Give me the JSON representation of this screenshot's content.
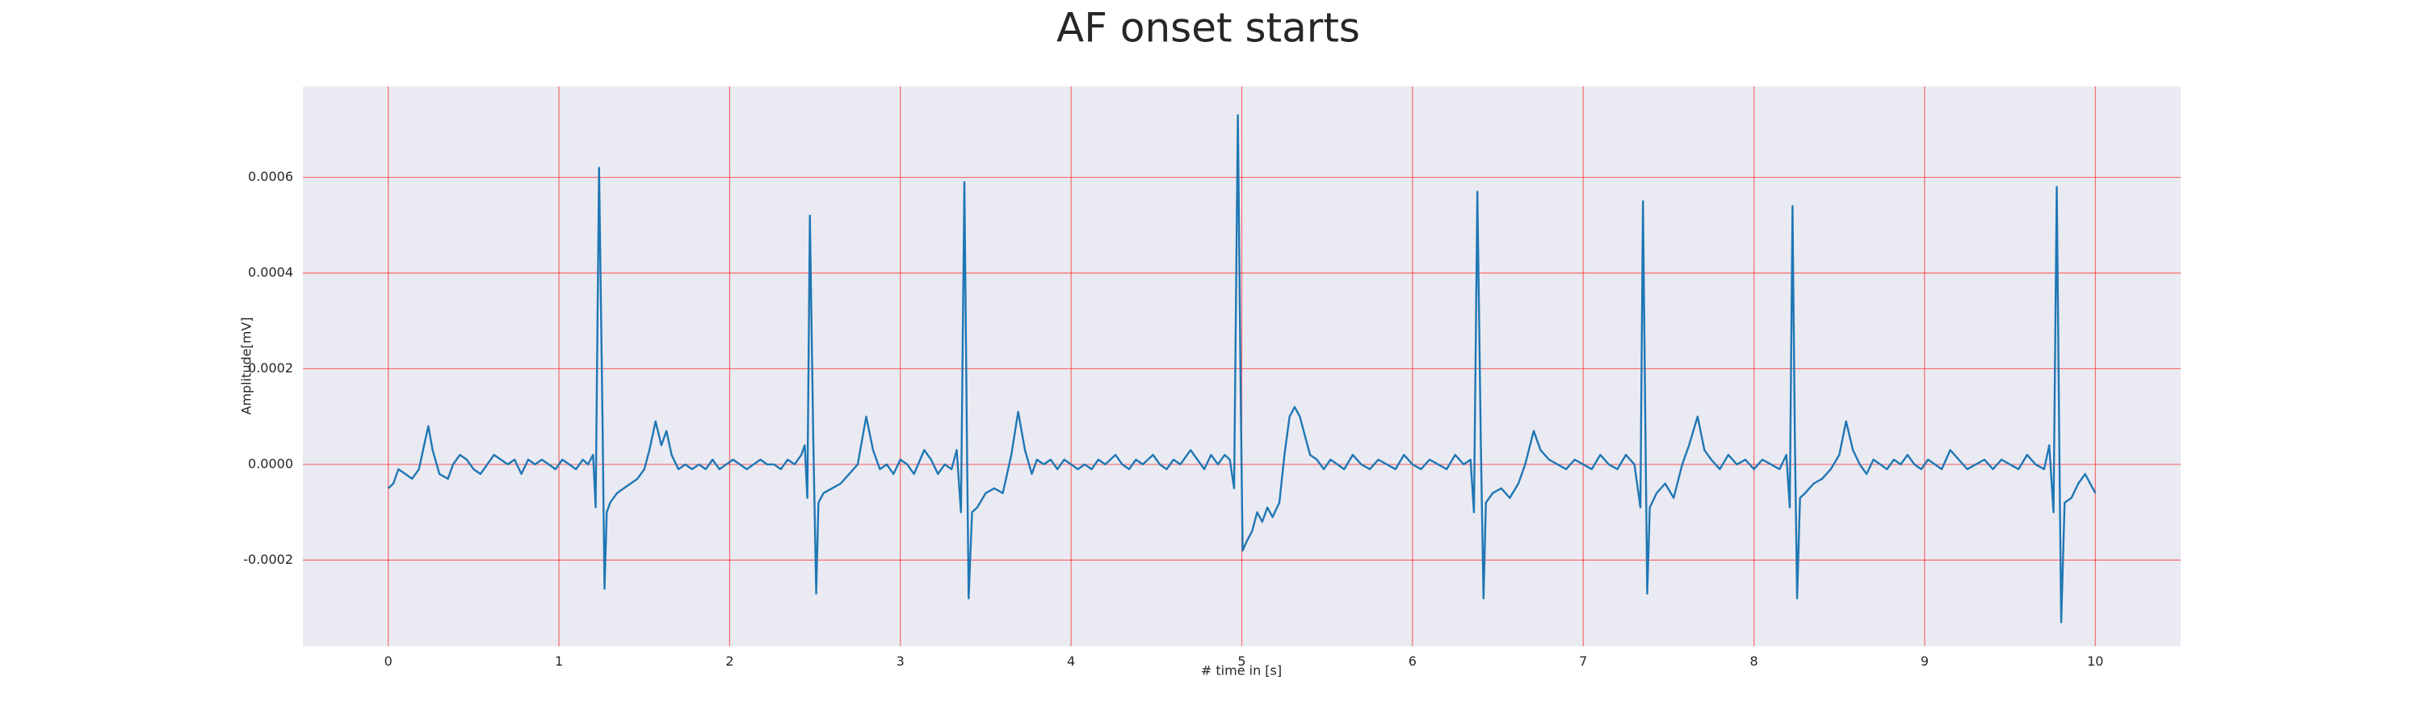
{
  "chart_data": {
    "type": "line",
    "title": "AF onset starts",
    "x_label": "# time in [s]",
    "y_label": "Amplitude[mV]",
    "color": "#1f77b4",
    "grid": true,
    "grid_color": "#ff0000",
    "background": "#eaeaf2",
    "xlim": [
      -0.5,
      10.5
    ],
    "ylim": [
      -0.00038,
      0.00079
    ],
    "xticks": [
      0,
      1,
      2,
      3,
      4,
      5,
      6,
      7,
      8,
      9,
      10
    ],
    "yticks": [
      {
        "value": -0.0002,
        "label": "-0.0002"
      },
      {
        "value": 0,
        "label": "0.0000"
      },
      {
        "value": 0.0002,
        "label": "0.0002"
      },
      {
        "value": 0.0004,
        "label": "0.0004"
      },
      {
        "value": 0.0006,
        "label": "0.0006"
      }
    ],
    "x": [
      0,
      0.03,
      0.06,
      0.1,
      0.14,
      0.18,
      0.21,
      0.235,
      0.26,
      0.3,
      0.35,
      0.38,
      0.42,
      0.46,
      0.5,
      0.54,
      0.58,
      0.62,
      0.66,
      0.7,
      0.74,
      0.78,
      0.82,
      0.86,
      0.9,
      0.94,
      0.98,
      1.02,
      1.06,
      1.1,
      1.14,
      1.17,
      1.2,
      1.215,
      1.235,
      1.255,
      1.267,
      1.28,
      1.3,
      1.34,
      1.38,
      1.42,
      1.46,
      1.5,
      1.53,
      1.566,
      1.6,
      1.63,
      1.66,
      1.7,
      1.74,
      1.78,
      1.82,
      1.86,
      1.9,
      1.94,
      1.98,
      2.02,
      2.06,
      2.1,
      2.14,
      2.18,
      2.22,
      2.26,
      2.3,
      2.34,
      2.38,
      2.42,
      2.44,
      2.455,
      2.47,
      2.49,
      2.507,
      2.52,
      2.55,
      2.6,
      2.65,
      2.7,
      2.75,
      2.8,
      2.84,
      2.88,
      2.92,
      2.96,
      3.0,
      3.04,
      3.08,
      3.14,
      3.18,
      3.22,
      3.26,
      3.3,
      3.33,
      3.355,
      3.375,
      3.39,
      3.4,
      3.42,
      3.45,
      3.5,
      3.55,
      3.6,
      3.65,
      3.69,
      3.73,
      3.77,
      3.8,
      3.84,
      3.88,
      3.92,
      3.96,
      4.0,
      4.04,
      4.08,
      4.12,
      4.16,
      4.2,
      4.26,
      4.3,
      4.34,
      4.38,
      4.42,
      4.48,
      4.52,
      4.56,
      4.6,
      4.64,
      4.7,
      4.74,
      4.78,
      4.82,
      4.86,
      4.9,
      4.93,
      4.955,
      4.977,
      4.995,
      5.005,
      5.03,
      5.06,
      5.09,
      5.12,
      5.15,
      5.18,
      5.22,
      5.25,
      5.28,
      5.31,
      5.34,
      5.37,
      5.4,
      5.44,
      5.48,
      5.52,
      5.56,
      5.6,
      5.65,
      5.7,
      5.75,
      5.8,
      5.85,
      5.9,
      5.95,
      6.0,
      6.05,
      6.1,
      6.15,
      6.2,
      6.25,
      6.3,
      6.34,
      6.36,
      6.38,
      6.4,
      6.416,
      6.43,
      6.47,
      6.52,
      6.57,
      6.62,
      6.66,
      6.71,
      6.75,
      6.8,
      6.85,
      6.9,
      6.95,
      7.0,
      7.05,
      7.1,
      7.15,
      7.2,
      7.25,
      7.3,
      7.335,
      7.35,
      7.365,
      7.375,
      7.39,
      7.43,
      7.48,
      7.53,
      7.58,
      7.62,
      7.67,
      7.71,
      7.75,
      7.8,
      7.85,
      7.9,
      7.95,
      8.0,
      8.05,
      8.1,
      8.15,
      8.19,
      8.21,
      8.226,
      8.24,
      8.253,
      8.27,
      8.3,
      8.35,
      8.4,
      8.45,
      8.5,
      8.54,
      8.58,
      8.62,
      8.66,
      8.7,
      8.74,
      8.78,
      8.82,
      8.86,
      8.9,
      8.94,
      8.98,
      9.02,
      9.06,
      9.1,
      9.15,
      9.2,
      9.25,
      9.3,
      9.35,
      9.4,
      9.45,
      9.5,
      9.55,
      9.6,
      9.65,
      9.7,
      9.73,
      9.755,
      9.774,
      9.79,
      9.8,
      9.82,
      9.86,
      9.9,
      9.94,
      10.0
    ],
    "values": [
      -5e-05,
      -4e-05,
      -1e-05,
      -2e-05,
      -3e-05,
      -1e-05,
      4e-05,
      8e-05,
      3e-05,
      -2e-05,
      -3e-05,
      0,
      2e-05,
      1e-05,
      -1e-05,
      -2e-05,
      0,
      2e-05,
      1e-05,
      0,
      1e-05,
      -2e-05,
      1e-05,
      0,
      1e-05,
      0,
      -1e-05,
      1e-05,
      0,
      -1e-05,
      1e-05,
      0,
      2e-05,
      -9e-05,
      0.00062,
      0.0001,
      -0.00026,
      -0.0001,
      -8e-05,
      -6e-05,
      -5e-05,
      -4e-05,
      -3e-05,
      -1e-05,
      3e-05,
      9e-05,
      4e-05,
      7e-05,
      2e-05,
      -1e-05,
      0,
      -1e-05,
      0,
      -1e-05,
      1e-05,
      -1e-05,
      0,
      1e-05,
      0,
      -1e-05,
      0,
      1e-05,
      0,
      0,
      -1e-05,
      1e-05,
      0,
      2e-05,
      4e-05,
      -7e-05,
      0.00052,
      5e-05,
      -0.00027,
      -8e-05,
      -6e-05,
      -5e-05,
      -4e-05,
      -2e-05,
      0,
      0.0001,
      3e-05,
      -1e-05,
      0,
      -2e-05,
      1e-05,
      0,
      -2e-05,
      3e-05,
      1e-05,
      -2e-05,
      0,
      -1e-05,
      3e-05,
      -0.0001,
      0.00059,
      5e-05,
      -0.00028,
      -0.0001,
      -9e-05,
      -6e-05,
      -5e-05,
      -6e-05,
      2e-05,
      0.00011,
      3e-05,
      -2e-05,
      1e-05,
      0,
      1e-05,
      -1e-05,
      1e-05,
      0,
      -1e-05,
      0,
      -1e-05,
      1e-05,
      0,
      2e-05,
      0,
      -1e-05,
      1e-05,
      0,
      2e-05,
      0,
      -1e-05,
      1e-05,
      0,
      3e-05,
      1e-05,
      -1e-05,
      2e-05,
      0,
      2e-05,
      1e-05,
      -5e-05,
      0.00073,
      0.0001,
      -0.00018,
      -0.00016,
      -0.00014,
      -0.0001,
      -0.00012,
      -9e-05,
      -0.00011,
      -8e-05,
      2e-05,
      0.0001,
      0.00012,
      0.0001,
      6e-05,
      2e-05,
      1e-05,
      -1e-05,
      1e-05,
      0,
      -1e-05,
      2e-05,
      0,
      -1e-05,
      1e-05,
      0,
      -1e-05,
      2e-05,
      0,
      -1e-05,
      1e-05,
      0,
      -1e-05,
      2e-05,
      0,
      1e-05,
      -0.0001,
      0.00057,
      5e-05,
      -0.00028,
      -8e-05,
      -6e-05,
      -5e-05,
      -7e-05,
      -4e-05,
      0,
      7e-05,
      3e-05,
      1e-05,
      0,
      -1e-05,
      1e-05,
      0,
      -1e-05,
      2e-05,
      0,
      -1e-05,
      2e-05,
      0,
      -9e-05,
      0.00055,
      5e-05,
      -0.00027,
      -9e-05,
      -6e-05,
      -4e-05,
      -7e-05,
      0,
      4e-05,
      0.0001,
      3e-05,
      1e-05,
      -1e-05,
      2e-05,
      0,
      1e-05,
      -1e-05,
      1e-05,
      0,
      -1e-05,
      2e-05,
      -9e-05,
      0.00054,
      5e-05,
      -0.00028,
      -7e-05,
      -6e-05,
      -4e-05,
      -3e-05,
      -1e-05,
      2e-05,
      9e-05,
      3e-05,
      0,
      -2e-05,
      1e-05,
      0,
      -1e-05,
      1e-05,
      0,
      2e-05,
      0,
      -1e-05,
      1e-05,
      0,
      -1e-05,
      3e-05,
      1e-05,
      -1e-05,
      0,
      1e-05,
      -1e-05,
      1e-05,
      0,
      -1e-05,
      2e-05,
      0,
      -1e-05,
      4e-05,
      -0.0001,
      0.00058,
      0,
      -0.00033,
      -8e-05,
      -7e-05,
      -4e-05,
      -2e-05,
      -6e-05
    ]
  }
}
